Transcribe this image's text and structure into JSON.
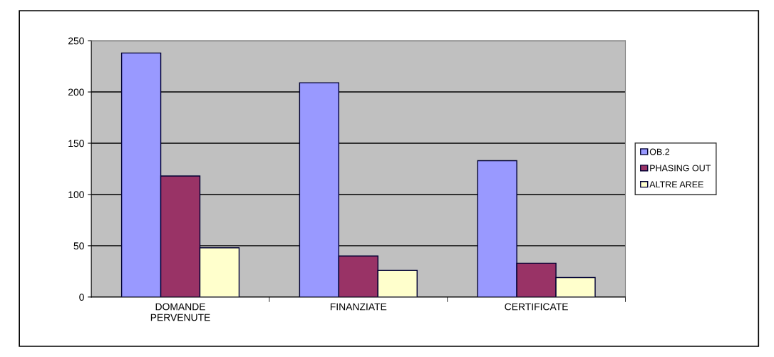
{
  "chart_data": {
    "type": "bar",
    "categories": [
      "DOMANDE\nPERVENUTE",
      "FINANZIATE",
      "CERTIFICATE"
    ],
    "series": [
      {
        "name": "OB.2",
        "color": "#9999ff",
        "values": [
          238,
          209,
          133
        ]
      },
      {
        "name": "PHASING OUT",
        "color": "#993366",
        "values": [
          118,
          40,
          33
        ]
      },
      {
        "name": "ALTRE AREE",
        "color": "#ffffcc",
        "values": [
          48,
          26,
          19
        ]
      }
    ],
    "ylim": [
      0,
      250
    ],
    "yticks": [
      0,
      50,
      100,
      150,
      200,
      250
    ],
    "grid": "y",
    "legend": "right"
  }
}
